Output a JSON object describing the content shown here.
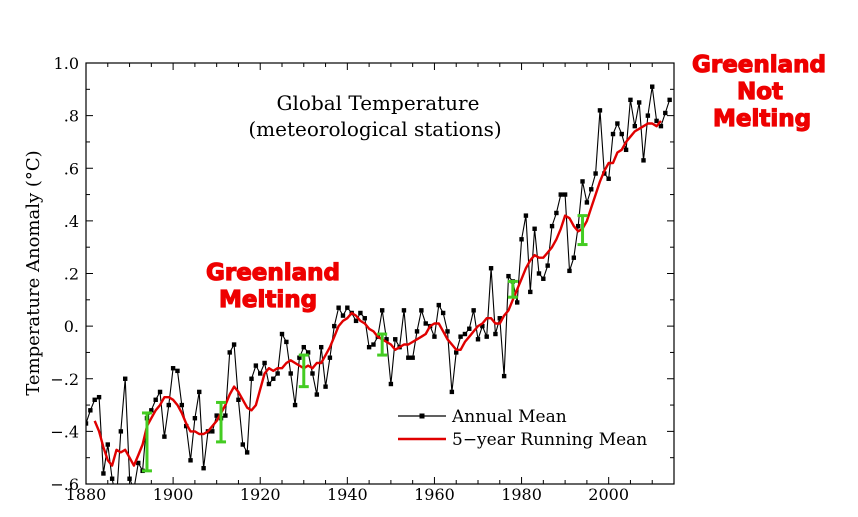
{
  "chart_data": {
    "type": "line",
    "title": "Global Temperature",
    "subtitle": "(meteorological stations)",
    "xlabel": "",
    "ylabel": "Temperature Anomaly (°C)",
    "xlim": [
      1880,
      2015
    ],
    "ylim": [
      -0.6,
      1.0
    ],
    "x_ticks": [
      1880,
      1900,
      1920,
      1940,
      1960,
      1980,
      2000
    ],
    "x_tick_labels": [
      "1880",
      "1900",
      "1920",
      "1940",
      "1960",
      "1980",
      "2000"
    ],
    "y_ticks": [
      -0.6,
      -0.4,
      -0.2,
      0.0,
      0.2,
      0.4,
      0.6,
      0.8,
      1.0
    ],
    "y_tick_labels": [
      "−.6",
      "−.4",
      "−.2",
      "0.",
      ".2",
      ".4",
      ".6",
      ".8",
      "1.0"
    ],
    "grid": false,
    "legend_position": "bottom-right",
    "series": [
      {
        "name": "Annual Mean",
        "color": "#000000",
        "marker": "square",
        "x": [
          1880,
          1881,
          1882,
          1883,
          1884,
          1885,
          1886,
          1887,
          1888,
          1889,
          1890,
          1891,
          1892,
          1893,
          1894,
          1895,
          1896,
          1897,
          1898,
          1899,
          1900,
          1901,
          1902,
          1903,
          1904,
          1905,
          1906,
          1907,
          1908,
          1909,
          1910,
          1911,
          1912,
          1913,
          1914,
          1915,
          1916,
          1917,
          1918,
          1919,
          1920,
          1921,
          1922,
          1923,
          1924,
          1925,
          1926,
          1927,
          1928,
          1929,
          1930,
          1931,
          1932,
          1933,
          1934,
          1935,
          1936,
          1937,
          1938,
          1939,
          1940,
          1941,
          1942,
          1943,
          1944,
          1945,
          1946,
          1947,
          1948,
          1949,
          1950,
          1951,
          1952,
          1953,
          1954,
          1955,
          1956,
          1957,
          1958,
          1959,
          1960,
          1961,
          1962,
          1963,
          1964,
          1965,
          1966,
          1967,
          1968,
          1969,
          1970,
          1971,
          1972,
          1973,
          1974,
          1975,
          1976,
          1977,
          1978,
          1979,
          1980,
          1981,
          1982,
          1983,
          1984,
          1985,
          1986,
          1987,
          1988,
          1989,
          1990,
          1991,
          1992,
          1993,
          1994,
          1995,
          1996,
          1997,
          1998,
          1999,
          2000,
          2001,
          2002,
          2003,
          2004,
          2005,
          2006,
          2007,
          2008,
          2009,
          2010,
          2011,
          2012,
          2013,
          2014
        ],
        "values": [
          -0.37,
          -0.32,
          -0.28,
          -0.27,
          -0.56,
          -0.45,
          -0.58,
          -0.66,
          -0.4,
          -0.2,
          -0.58,
          -0.62,
          -0.52,
          -0.55,
          -0.35,
          -0.32,
          -0.28,
          -0.25,
          -0.42,
          -0.3,
          -0.16,
          -0.17,
          -0.3,
          -0.38,
          -0.51,
          -0.35,
          -0.25,
          -0.54,
          -0.4,
          -0.4,
          -0.34,
          -0.35,
          -0.34,
          -0.1,
          -0.07,
          -0.28,
          -0.45,
          -0.48,
          -0.2,
          -0.15,
          -0.18,
          -0.14,
          -0.22,
          -0.2,
          -0.18,
          -0.03,
          -0.06,
          -0.18,
          -0.3,
          -0.12,
          -0.08,
          -0.1,
          -0.18,
          -0.26,
          -0.08,
          -0.23,
          -0.12,
          0.0,
          0.07,
          0.04,
          0.07,
          0.05,
          0.02,
          0.05,
          0.03,
          -0.08,
          -0.07,
          -0.04,
          0.06,
          -0.05,
          -0.22,
          -0.05,
          -0.08,
          0.06,
          -0.12,
          -0.12,
          -0.02,
          0.06,
          0.01,
          0.0,
          -0.04,
          0.08,
          0.05,
          -0.02,
          -0.25,
          -0.1,
          -0.04,
          -0.03,
          -0.01,
          0.06,
          -0.05,
          0.0,
          -0.04,
          0.22,
          -0.03,
          0.03,
          -0.19,
          0.19,
          0.17,
          0.09,
          0.33,
          0.42,
          0.13,
          0.37,
          0.2,
          0.18,
          0.23,
          0.38,
          0.43,
          0.5,
          0.5,
          0.21,
          0.26,
          0.38,
          0.55,
          0.47,
          0.52,
          0.58,
          0.82,
          0.58,
          0.56,
          0.73,
          0.77,
          0.73,
          0.67,
          0.86,
          0.76,
          0.85,
          0.63,
          0.8,
          0.91,
          0.78,
          0.76,
          0.81,
          0.86
        ]
      },
      {
        "name": "5−year Running Mean",
        "color": "#e00000",
        "x": [
          1882,
          1883,
          1884,
          1885,
          1886,
          1887,
          1888,
          1889,
          1890,
          1891,
          1892,
          1893,
          1894,
          1895,
          1896,
          1897,
          1898,
          1899,
          1900,
          1901,
          1902,
          1903,
          1904,
          1905,
          1906,
          1907,
          1908,
          1909,
          1910,
          1911,
          1912,
          1913,
          1914,
          1915,
          1916,
          1917,
          1918,
          1919,
          1920,
          1921,
          1922,
          1923,
          1924,
          1925,
          1926,
          1927,
          1928,
          1929,
          1930,
          1931,
          1932,
          1933,
          1934,
          1935,
          1936,
          1937,
          1938,
          1939,
          1940,
          1941,
          1942,
          1943,
          1944,
          1945,
          1946,
          1947,
          1948,
          1949,
          1950,
          1951,
          1952,
          1953,
          1954,
          1955,
          1956,
          1957,
          1958,
          1959,
          1960,
          1961,
          1962,
          1963,
          1964,
          1965,
          1966,
          1967,
          1968,
          1969,
          1970,
          1971,
          1972,
          1973,
          1974,
          1975,
          1976,
          1977,
          1978,
          1979,
          1980,
          1981,
          1982,
          1983,
          1984,
          1985,
          1986,
          1987,
          1988,
          1989,
          1990,
          1991,
          1992,
          1993,
          1994,
          1995,
          1996,
          1997,
          1998,
          1999,
          2000,
          2001,
          2002,
          2003,
          2004,
          2005,
          2006,
          2007,
          2008,
          2009,
          2010,
          2011,
          2012
        ],
        "values": [
          -0.36,
          -0.4,
          -0.46,
          -0.51,
          -0.53,
          -0.47,
          -0.48,
          -0.47,
          -0.5,
          -0.53,
          -0.49,
          -0.45,
          -0.38,
          -0.35,
          -0.32,
          -0.3,
          -0.27,
          -0.27,
          -0.28,
          -0.3,
          -0.33,
          -0.37,
          -0.4,
          -0.4,
          -0.41,
          -0.41,
          -0.4,
          -0.38,
          -0.36,
          -0.33,
          -0.3,
          -0.26,
          -0.23,
          -0.25,
          -0.28,
          -0.31,
          -0.32,
          -0.3,
          -0.24,
          -0.18,
          -0.16,
          -0.17,
          -0.16,
          -0.16,
          -0.14,
          -0.13,
          -0.14,
          -0.15,
          -0.16,
          -0.15,
          -0.16,
          -0.14,
          -0.14,
          -0.11,
          -0.08,
          -0.04,
          0.0,
          0.02,
          0.03,
          0.05,
          0.04,
          0.02,
          0.01,
          -0.01,
          -0.02,
          -0.04,
          -0.05,
          -0.06,
          -0.07,
          -0.09,
          -0.08,
          -0.07,
          -0.07,
          -0.06,
          -0.05,
          -0.04,
          -0.03,
          0.0,
          0.01,
          0.01,
          -0.02,
          -0.05,
          -0.07,
          -0.09,
          -0.09,
          -0.06,
          -0.04,
          -0.02,
          0.0,
          0.01,
          0.03,
          0.03,
          0.01,
          0.01,
          0.04,
          0.06,
          0.1,
          0.14,
          0.18,
          0.22,
          0.25,
          0.27,
          0.26,
          0.26,
          0.28,
          0.3,
          0.33,
          0.37,
          0.42,
          0.41,
          0.38,
          0.36,
          0.37,
          0.4,
          0.45,
          0.5,
          0.55,
          0.59,
          0.62,
          0.62,
          0.66,
          0.67,
          0.7,
          0.72,
          0.74,
          0.75,
          0.76,
          0.77,
          0.77,
          0.76,
          0.78
        ]
      }
    ],
    "error_bars": [
      {
        "x": 1894,
        "y": -0.44,
        "low": -0.55,
        "high": -0.33
      },
      {
        "x": 1911,
        "y": -0.37,
        "low": -0.44,
        "high": -0.29
      },
      {
        "x": 1930,
        "y": -0.17,
        "low": -0.23,
        "high": -0.11
      },
      {
        "x": 1948,
        "y": -0.07,
        "low": -0.11,
        "high": -0.03
      },
      {
        "x": 1978,
        "y": 0.14,
        "low": 0.11,
        "high": 0.17
      },
      {
        "x": 1994,
        "y": 0.36,
        "low": 0.31,
        "high": 0.42
      }
    ],
    "error_bar_color": "#44cc22",
    "annotations": [
      {
        "id": "melting",
        "text_lines": [
          "Greenland",
          "Melting"
        ],
        "color": "#ee0000"
      },
      {
        "id": "not-melting",
        "text_lines": [
          "Greenland",
          "Not",
          "Melting"
        ],
        "color": "#ee0000"
      }
    ]
  }
}
